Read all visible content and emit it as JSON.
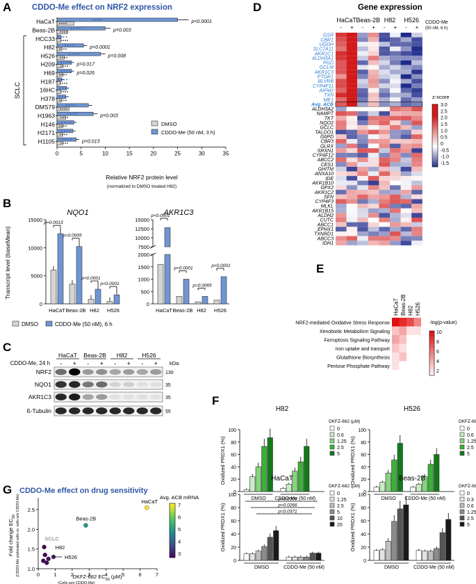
{
  "panels": {
    "A": {
      "letter": "A",
      "title": "CDDO-Me effect on NRF2 expression",
      "group_label": "SCLC",
      "xlabel": "Relative NRF2 protein level",
      "xlabel_note": "(normalized to DMSO treated H82)",
      "legend": [
        "DMSO",
        "CDDO-Me (50 nM, 3 h)"
      ]
    },
    "B": {
      "letter": "B",
      "ylabel": "Transcript level (baseMean)",
      "legend": [
        "DMSO",
        "CDDO-Me (50 nM), 6 h"
      ]
    },
    "C": {
      "letter": "C",
      "treatment_label": "CDDO-Me, 24 h",
      "kda_label": "kDa",
      "cell_lines": [
        "HaCaT",
        "Beas-2B",
        "H82",
        "H526"
      ],
      "lane_signs": [
        "-",
        "+",
        "-",
        "+",
        "-",
        "+",
        "-",
        "+"
      ],
      "rows": [
        {
          "name": "NRF2",
          "kda": "130",
          "intensity": [
            0.55,
            1.0,
            0.35,
            0.4,
            0.3,
            0.35,
            0.3,
            0.35
          ]
        },
        {
          "name": "NQO1",
          "kda": "35",
          "intensity": [
            0.8,
            0.85,
            0.5,
            0.55,
            0.1,
            0.12,
            0.05,
            0.05
          ]
        },
        {
          "name": "AKR1C3",
          "kda": "35",
          "intensity": [
            0.85,
            0.9,
            0.3,
            0.35,
            0.05,
            0.05,
            0.05,
            0.05
          ]
        },
        {
          "name": "ß-Tubulin",
          "kda": "55",
          "intensity": [
            0.85,
            0.85,
            0.85,
            0.85,
            0.85,
            0.85,
            0.85,
            0.85
          ]
        }
      ]
    },
    "D": {
      "letter": "D",
      "title": "Gene expression",
      "treatment_label": "CDDO-Me",
      "treatment_note": "(50 nM, 6 h)",
      "colorbar_title": "z-score",
      "colorbar_ticks": [
        "3.0",
        "2.5",
        "2.0",
        "1.5",
        "1.0",
        "0.5",
        "0",
        "-0.5",
        "-1.0",
        "-1.5"
      ],
      "cell_lines": [
        "HaCaT",
        "Beas-2B",
        "H82",
        "H526"
      ],
      "col_signs": [
        "-",
        "+",
        "-",
        "+",
        "-",
        "+",
        "-",
        "+"
      ]
    },
    "E": {
      "letter": "E",
      "colorbar_title": "-log(p-value)",
      "colorbar_ticks": [
        "10",
        "8",
        "6",
        "4",
        "2"
      ],
      "cell_lines": [
        "HaCaT",
        "Beas-2B",
        "H82",
        "H526"
      ],
      "pathways": [
        "NRF2-mediated Oxidative Stress Response",
        "Xenobiotic Metabolism Signaling",
        "Ferroptosis Signaling Pathway",
        "Iron uptake and transport",
        "Glutathione Biosynthesis",
        "Pentose Phosphate Pathway"
      ]
    },
    "F": {
      "letter": "F",
      "ylabel": "Oxidized PRDX1 (%)",
      "legend_title": "DKFZ-682 (µM)",
      "xgroups": [
        "DMSO",
        "CDDO-Me (50 nM)"
      ]
    },
    "G": {
      "letter": "G",
      "title": "CDDO-Me effect on drug sensitivity",
      "xlabel": "DKFZ-682 EC",
      "xlabel_sub": "50",
      "xlabel_tail": " (µM)",
      "xlabel_note": "(Cells w/o CDDO-Me)",
      "ylabel": "Fold change EC",
      "ylabel_sub": "50",
      "ylabel_note": "(CDDO-Me pretreated cells vs. cells w/o CDDO-Me)",
      "colorbar_title": "Avg. ACB mRNA",
      "colorbar_ticks": [
        "7",
        "6",
        "5",
        "4",
        "3"
      ],
      "point_labels": [
        "HaCaT",
        "Beas-2B",
        "SCLC",
        "H82",
        "H526"
      ]
    }
  },
  "chart_data": [
    {
      "panel": "A",
      "type": "bar",
      "orientation": "horizontal",
      "categories": [
        "HaCaT",
        "Beas-2B",
        "HCC33",
        "H82",
        "H526",
        "H209",
        "H69",
        "H187",
        "16HC",
        "H378",
        "DMS79",
        "H1963",
        "H146",
        "H2171",
        "H1105"
      ],
      "series": [
        {
          "name": "DMSO",
          "values": [
            3.5,
            2.2,
            0.8,
            1.0,
            1.5,
            1.2,
            1.2,
            0.7,
            0.8,
            1.0,
            2.5,
            1.8,
            1.2,
            1.2,
            1.2
          ],
          "color": "#d4d4d4"
        },
        {
          "name": "CDDO-Me (50 nM, 3 h)",
          "values": [
            25.0,
            10.0,
            0.8,
            5.5,
            9.0,
            3.0,
            3.0,
            1.0,
            2.0,
            1.8,
            6.5,
            7.5,
            3.5,
            3.3,
            4.0
          ],
          "color": "#6f95d3"
        }
      ],
      "pvalues": {
        "HaCaT": "p<0.0001",
        "Beas-2B": "p=0.003",
        "H82": "p<0.0001",
        "H526": "p=0.008",
        "H209": "p=0.017",
        "H69": "p=0.026",
        "H1963": "p=0.003",
        "H1105": "p=0.013"
      },
      "xticks": [
        0,
        5,
        10,
        15,
        20,
        25,
        30,
        35
      ],
      "xlim": [
        0,
        35
      ]
    },
    {
      "panel": "B",
      "title": "NQO1",
      "type": "bar",
      "categories": [
        "HaCaT",
        "Beas-2B",
        "H82",
        "H526"
      ],
      "series": [
        {
          "name": "DMSO",
          "values": [
            6000,
            3500,
            800,
            400
          ],
          "color": "#d4d4d4"
        },
        {
          "name": "CDDO-Me (50 nM), 6 h",
          "values": [
            12500,
            10200,
            2600,
            1600
          ],
          "color": "#6f95d3"
        }
      ],
      "pvalues": [
        "p=0.0013",
        "p=0.0005",
        "p<0.0001",
        "p<0.0001"
      ],
      "yticks": [
        0,
        5000,
        10000,
        15000
      ],
      "ylim": [
        0,
        15000
      ]
    },
    {
      "panel": "B",
      "title": "AKR1C3",
      "type": "bar",
      "categories": [
        "HaCaT",
        "Beas-2B",
        "H82",
        "H526"
      ],
      "series": [
        {
          "name": "DMSO",
          "values": [
            1600,
            300,
            80,
            150
          ],
          "color": "#d4d4d4"
        },
        {
          "name": "CDDO-Me (50 nM), 6 h",
          "values": [
            12800,
            1000,
            300,
            1100
          ],
          "color": "#6f95d3"
        }
      ],
      "pvalues": [
        "p<0.0001",
        "p<0.0001",
        "p=0.0065",
        "p<0.0001"
      ],
      "yticks": [
        0,
        500,
        1000,
        1500,
        2000,
        7500,
        10000,
        12500,
        15000
      ],
      "broken_axis": [
        2000,
        7500
      ]
    },
    {
      "panel": "D",
      "type": "heatmap",
      "genes_acb": [
        "GSR",
        "CBR1",
        "UGDH",
        "SLC7A11",
        "AKR1C1",
        "ALDH3A1",
        "PGD",
        "GCLM",
        "AKR1C3",
        "PTGR1",
        "BLVRB",
        "CYP4F11",
        "AIFM2",
        "TXN",
        "ME1"
      ],
      "summary_row": "Avg. ACB",
      "genes_other": [
        "ALDH3A2",
        "NAMPT",
        "TKT",
        "NQO2",
        "GCLC",
        "TALDO1",
        "G6PD",
        "CBR3",
        "GLRX",
        "SRXN1",
        "CYP4F12",
        "ABCC2",
        "CES1",
        "GHITM",
        "ANXA10",
        "IDE",
        "AKR1B10",
        "GPX2",
        "AKR1C2",
        "SFN",
        "CYP4F3",
        "MLKL",
        "AKR1B15",
        "ALDH2",
        "CUTC",
        "ABCC1",
        "EPHX1",
        "TXNRD1",
        "ABCC3",
        "IDH1"
      ],
      "columns": [
        "HaCaT -",
        "HaCaT +",
        "Beas-2B -",
        "Beas-2B +",
        "H82 -",
        "H82 +",
        "H526 -",
        "H526 +"
      ],
      "zlim": [
        -1.5,
        3.0
      ]
    },
    {
      "panel": "E",
      "type": "heatmap",
      "rows": [
        "NRF2-mediated Oxidative Stress Response",
        "Xenobiotic Metabolism Signaling",
        "Ferroptosis Signaling Pathway",
        "Iron uptake and transport",
        "Glutathione Biosynthesis",
        "Pentose Phosphate Pathway"
      ],
      "columns": [
        "HaCaT",
        "Beas-2B",
        "H82",
        "H526"
      ],
      "values": [
        [
          10,
          9,
          8,
          6
        ],
        [
          4,
          5,
          3,
          3
        ],
        [
          5,
          4,
          2,
          2
        ],
        [
          4,
          3,
          2,
          2
        ],
        [
          3,
          4,
          2,
          2
        ],
        [
          3,
          2,
          2,
          2
        ]
      ],
      "zlim": [
        2,
        10
      ]
    },
    {
      "panel": "F",
      "title": "H82",
      "type": "bar",
      "doses": [
        "0",
        "0.6",
        "1.25",
        "2.5",
        "5"
      ],
      "groups": [
        "DMSO",
        "CDDO-Me (50 nM)"
      ],
      "values": [
        [
          3,
          24,
          40,
          73,
          87
        ],
        [
          5,
          12,
          33,
          48,
          73
        ]
      ],
      "yticks": [
        0,
        20,
        40,
        60,
        80,
        100
      ],
      "ylim": [
        0,
        100
      ]
    },
    {
      "panel": "F",
      "title": "H526",
      "type": "bar",
      "doses": [
        "0",
        "0.6",
        "1.25",
        "2.5",
        "5"
      ],
      "groups": [
        "DMSO",
        "CDDO-Me (50 nM)"
      ],
      "values": [
        [
          7,
          15,
          30,
          51,
          78
        ],
        [
          7,
          12,
          24,
          44,
          60
        ]
      ],
      "yticks": [
        0,
        20,
        40,
        60,
        80,
        100
      ],
      "ylim": [
        0,
        100
      ]
    },
    {
      "panel": "F",
      "title": "HaCaT",
      "type": "bar",
      "doses": [
        "0",
        "1.25",
        "2.5",
        "5",
        "10",
        "20"
      ],
      "groups": [
        "DMSO",
        "CDDO-Me (50 nM)"
      ],
      "values": [
        [
          10,
          10,
          14,
          21,
          35,
          45
        ],
        [
          5,
          5,
          5,
          5,
          11,
          11
        ]
      ],
      "pvalues": [
        "p=0.0009",
        "p=0.0266",
        "p=0.0371"
      ],
      "yticks": [
        0,
        20,
        40,
        60,
        80,
        100
      ],
      "ylim": [
        0,
        100
      ]
    },
    {
      "panel": "F",
      "title": "Beas-2B",
      "type": "bar",
      "doses": [
        "0",
        "0.3",
        "0.6",
        "1.25",
        "2.5",
        "5"
      ],
      "groups": [
        "DMSO",
        "CDDO-Me (50 nM)"
      ],
      "values": [
        [
          15,
          16,
          29,
          59,
          78,
          84
        ],
        [
          15,
          14,
          14,
          18,
          42,
          62
        ]
      ],
      "yticks": [
        0,
        20,
        40,
        60,
        80,
        100
      ],
      "ylim": [
        0,
        100
      ]
    },
    {
      "panel": "G",
      "type": "scatter",
      "points": [
        {
          "label": "HaCaT",
          "x": 6.4,
          "y": 2.55,
          "acb": 7.0
        },
        {
          "label": "Beas-2B",
          "x": 2.8,
          "y": 2.1,
          "acb": 5.0
        },
        {
          "label": "H82",
          "x": 0.35,
          "y": 1.55,
          "acb": 3.0
        },
        {
          "label": "H526",
          "x": 0.9,
          "y": 1.3,
          "acb": 3.3
        },
        {
          "label": "",
          "x": 0.4,
          "y": 1.35,
          "acb": 3.1
        },
        {
          "label": "",
          "x": 0.6,
          "y": 1.25,
          "acb": 3.2
        },
        {
          "label": "",
          "x": 0.3,
          "y": 1.2,
          "acb": 3.0
        },
        {
          "label": "",
          "x": 0.5,
          "y": 1.15,
          "acb": 3.1
        }
      ],
      "xticks": [
        0,
        1,
        2,
        3,
        4,
        5,
        6,
        7
      ],
      "yticks": [
        1.0,
        1.5,
        2.0,
        2.5
      ],
      "xlim": [
        0,
        7
      ],
      "ylim": [
        1.0,
        2.8
      ]
    }
  ]
}
